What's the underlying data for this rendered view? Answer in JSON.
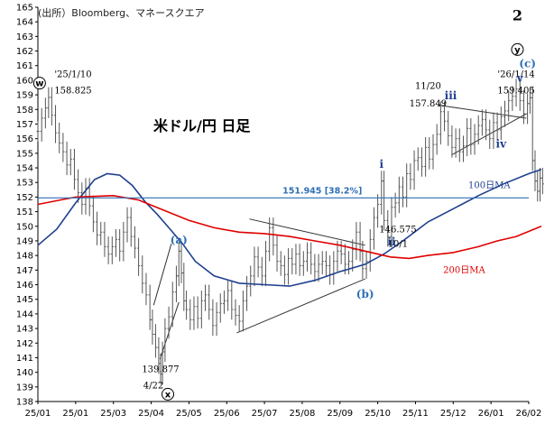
{
  "source": "(出所）Bloomberg、マネースクエア",
  "chart_data": {
    "type": "line",
    "title": "米ドル/円 日足",
    "x_ticks": [
      "25/01",
      "25/01",
      "25/03",
      "25/04",
      "25/05",
      "25/06",
      "25/07",
      "25/08",
      "25/09",
      "25/10",
      "25/11",
      "25/12",
      "26/01",
      "26/02"
    ],
    "ylim": [
      138,
      165
    ],
    "y_ticks": [
      138,
      139,
      140,
      141,
      142,
      143,
      144,
      145,
      146,
      147,
      148,
      149,
      150,
      151,
      152,
      153,
      154,
      155,
      156,
      157,
      158,
      159,
      160,
      161,
      162,
      163,
      164,
      165
    ],
    "grid": false,
    "price_series": {
      "name": "USD/JPY",
      "points": [
        [
          0,
          156.5
        ],
        [
          0.3,
          157.4
        ],
        [
          0.6,
          158.1
        ],
        [
          0.85,
          158.825
        ],
        [
          1.1,
          157.6
        ],
        [
          1.4,
          156.4
        ],
        [
          1.7,
          155.7
        ],
        [
          2.0,
          155.1
        ],
        [
          2.3,
          154.2
        ],
        [
          2.6,
          154.6
        ],
        [
          2.9,
          153.2
        ],
        [
          3.2,
          152.3
        ],
        [
          3.5,
          151.5
        ],
        [
          3.8,
          152.6
        ],
        [
          4.1,
          151.4
        ],
        [
          4.4,
          150.3
        ],
        [
          4.7,
          149.4
        ],
        [
          5.0,
          149.6
        ],
        [
          5.3,
          148.6
        ],
        [
          5.6,
          148.1
        ],
        [
          5.9,
          148.6
        ],
        [
          6.2,
          149.1
        ],
        [
          6.5,
          148.3
        ],
        [
          6.8,
          149.6
        ],
        [
          7.1,
          150.6
        ],
        [
          7.4,
          149.3
        ],
        [
          7.7,
          148.5
        ],
        [
          8.0,
          147.3
        ],
        [
          8.3,
          146.1
        ],
        [
          8.6,
          145.3
        ],
        [
          8.9,
          143.6
        ],
        [
          9.1,
          142.6
        ],
        [
          9.35,
          141.7
        ],
        [
          9.6,
          140.6
        ],
        [
          9.75,
          139.877
        ],
        [
          9.9,
          141.4
        ],
        [
          10.1,
          143.0
        ],
        [
          10.4,
          143.8
        ],
        [
          10.7,
          145.5
        ],
        [
          11.0,
          146.6
        ],
        [
          11.2,
          148.3
        ],
        [
          11.4,
          146.8
        ],
        [
          11.6,
          144.9
        ],
        [
          11.8,
          144.3
        ],
        [
          12.1,
          143.6
        ],
        [
          12.4,
          144.5
        ],
        [
          12.7,
          143.7
        ],
        [
          13.0,
          144.9
        ],
        [
          13.3,
          145.3
        ],
        [
          13.6,
          144.3
        ],
        [
          13.9,
          143.2
        ],
        [
          14.2,
          144.1
        ],
        [
          14.5,
          144.7
        ],
        [
          14.8,
          144.9
        ],
        [
          15.1,
          145.6
        ],
        [
          15.4,
          144.3
        ],
        [
          15.7,
          143.9
        ],
        [
          16.0,
          143.5
        ],
        [
          16.3,
          144.9
        ],
        [
          16.6,
          145.9
        ],
        [
          16.9,
          146.6
        ],
        [
          17.2,
          147.9
        ],
        [
          17.5,
          147.2
        ],
        [
          17.8,
          146.6
        ],
        [
          18.1,
          148.3
        ],
        [
          18.4,
          149.9
        ],
        [
          18.7,
          148.7
        ],
        [
          19.0,
          147.6
        ],
        [
          19.3,
          147.3
        ],
        [
          19.6,
          146.7
        ],
        [
          19.9,
          147.8
        ],
        [
          20.2,
          147.4
        ],
        [
          20.5,
          148.1
        ],
        [
          20.8,
          147.3
        ],
        [
          21.1,
          147.6
        ],
        [
          21.4,
          148.2
        ],
        [
          21.7,
          147.4
        ],
        [
          22.0,
          146.9
        ],
        [
          22.3,
          147.4
        ],
        [
          22.6,
          147.6
        ],
        [
          22.9,
          147.3
        ],
        [
          23.2,
          146.7
        ],
        [
          23.5,
          147.6
        ],
        [
          23.8,
          148.3
        ],
        [
          24.1,
          148.1
        ],
        [
          24.4,
          147.4
        ],
        [
          24.7,
          147.6
        ],
        [
          25.0,
          148.4
        ],
        [
          25.3,
          149.6
        ],
        [
          25.6,
          148.3
        ],
        [
          25.8,
          147.1
        ],
        [
          26.1,
          147.6
        ],
        [
          26.4,
          149.1
        ],
        [
          26.7,
          150.6
        ],
        [
          27.0,
          151.5
        ],
        [
          27.3,
          153.1
        ],
        [
          27.5,
          150.4
        ],
        [
          27.8,
          149.3
        ],
        [
          28.1,
          151.3
        ],
        [
          28.4,
          151.6
        ],
        [
          28.7,
          152.7
        ],
        [
          29.0,
          152.0
        ],
        [
          29.3,
          153.6
        ],
        [
          29.6,
          153.2
        ],
        [
          29.9,
          154.5
        ],
        [
          30.2,
          154.7
        ],
        [
          30.5,
          154.1
        ],
        [
          30.8,
          155.4
        ],
        [
          31.1,
          154.6
        ],
        [
          31.4,
          155.6
        ],
        [
          31.7,
          156.3
        ],
        [
          32.0,
          157.849
        ],
        [
          32.3,
          157.2
        ],
        [
          32.6,
          156.2
        ],
        [
          32.9,
          155.4
        ],
        [
          33.2,
          156.0
        ],
        [
          33.5,
          155.1
        ],
        [
          33.8,
          155.5
        ],
        [
          34.1,
          156.7
        ],
        [
          34.4,
          155.6
        ],
        [
          34.7,
          156.3
        ],
        [
          35.0,
          156.9
        ],
        [
          35.3,
          157.3
        ],
        [
          35.6,
          156.6
        ],
        [
          35.9,
          156.0
        ],
        [
          36.2,
          157.1
        ],
        [
          36.5,
          156.6
        ],
        [
          36.8,
          157.5
        ],
        [
          37.1,
          157.9
        ],
        [
          37.4,
          158.6
        ],
        [
          37.7,
          158.9
        ],
        [
          38.0,
          159.405
        ],
        [
          38.3,
          158.6
        ],
        [
          38.6,
          157.7
        ],
        [
          38.9,
          158.4
        ],
        [
          39.1,
          158.8
        ],
        [
          39.3,
          154.5
        ],
        [
          39.5,
          153.1
        ],
        [
          39.7,
          152.4
        ],
        [
          39.9,
          153.3
        ],
        [
          40.1,
          152.9
        ]
      ]
    },
    "ma100": {
      "name": "100日MA",
      "points": [
        [
          0,
          148.7
        ],
        [
          1.5,
          149.8
        ],
        [
          3,
          151.6
        ],
        [
          4.5,
          153.2
        ],
        [
          5.5,
          153.6
        ],
        [
          6.5,
          153.5
        ],
        [
          7.5,
          152.8
        ],
        [
          8.5,
          151.7
        ],
        [
          9.5,
          150.8
        ],
        [
          10.5,
          149.8
        ],
        [
          11.5,
          148.8
        ],
        [
          12.5,
          147.6
        ],
        [
          14,
          146.6
        ],
        [
          16,
          146.1
        ],
        [
          18,
          146.0
        ],
        [
          20,
          145.9
        ],
        [
          22,
          146.3
        ],
        [
          24,
          146.9
        ],
        [
          26,
          147.4
        ],
        [
          27.5,
          148.1
        ],
        [
          29,
          149.0
        ],
        [
          31,
          150.3
        ],
        [
          33,
          151.2
        ],
        [
          35,
          152.1
        ],
        [
          37,
          152.9
        ],
        [
          39,
          153.6
        ],
        [
          40,
          153.9
        ]
      ]
    },
    "ma200": {
      "name": "200日MA",
      "points": [
        [
          0,
          151.5
        ],
        [
          3,
          152.0
        ],
        [
          6,
          152.1
        ],
        [
          8,
          151.8
        ],
        [
          10,
          151.1
        ],
        [
          12,
          150.4
        ],
        [
          14,
          149.9
        ],
        [
          16,
          149.6
        ],
        [
          18,
          149.5
        ],
        [
          20,
          149.3
        ],
        [
          22,
          149.0
        ],
        [
          24,
          148.7
        ],
        [
          26,
          148.3
        ],
        [
          28,
          147.9
        ],
        [
          29.5,
          147.8
        ],
        [
          31,
          148.0
        ],
        [
          33,
          148.2
        ],
        [
          35,
          148.6
        ],
        [
          36.5,
          149.0
        ],
        [
          38,
          149.3
        ],
        [
          40,
          150.0
        ]
      ]
    },
    "reference_line": {
      "value": 151.945,
      "label": "151.945 [38.2%]"
    },
    "annotations": {
      "high_jan": "'25/1/10",
      "high_jan_value": "158.825",
      "low_apr": "139.877",
      "low_apr_date": "4/22",
      "nov_date": "11/20",
      "nov_value": "157.849",
      "jan26_date": "'26/1/14",
      "jan26_value": "159.405",
      "oct_value": "146.575",
      "oct_date": "10/1",
      "ma100_label": "100日MA",
      "ma200_label": "200日MA",
      "wave_w": "w",
      "wave_x": "x",
      "wave_y": "y",
      "wave_2": "2",
      "wave_a": "(a)",
      "wave_b": "(b)",
      "wave_c": "(c)",
      "wave_i": "i",
      "wave_ii": "ii",
      "wave_iii": "iii",
      "wave_iv": "iv",
      "wave_v": "v"
    },
    "colors": {
      "price": "#555555",
      "ma100": "#1f3f8f",
      "ma200": "#e00000",
      "reference": "#2e6fb5",
      "trend": "#333333",
      "wave_blue": "#2e6fb5",
      "wave_dark": "#1f3f8f"
    }
  }
}
